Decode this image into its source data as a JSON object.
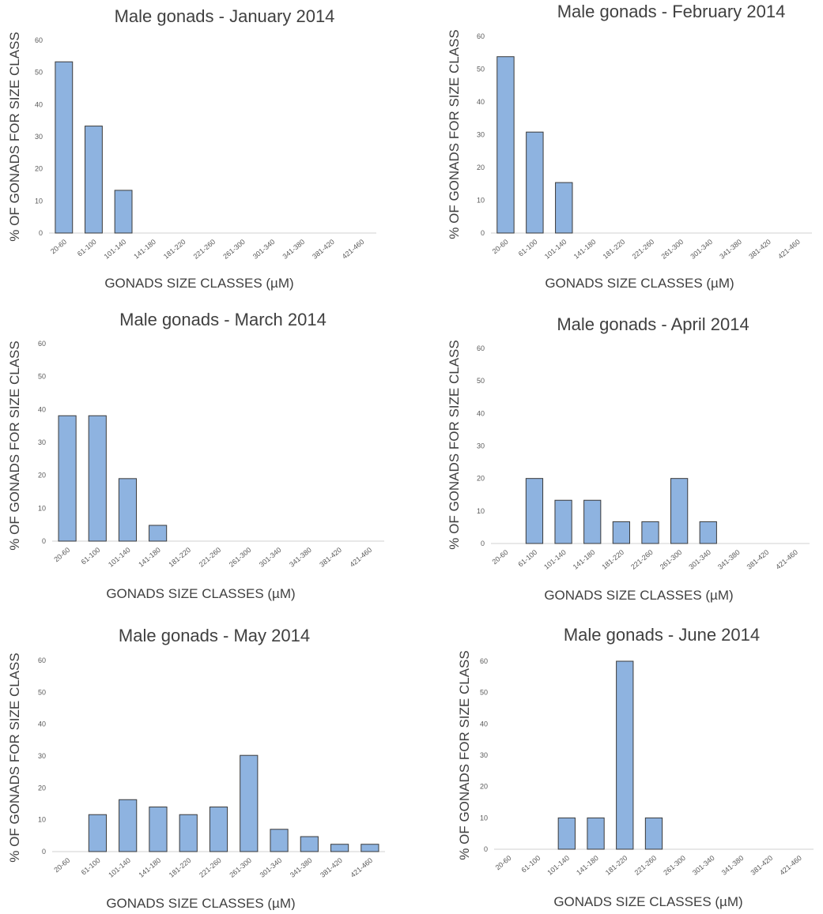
{
  "chart_data": [
    {
      "type": "bar",
      "title": "Male gonads - January 2014",
      "xlabel": "GONADS SIZE CLASSES (µM)",
      "ylabel": "% OF GONADS FOR SIZE CLASS",
      "ylim": [
        0,
        60
      ],
      "yticks": [
        0,
        10,
        20,
        30,
        40,
        50,
        60
      ],
      "categories": [
        "20-60",
        "61-100",
        "101-140",
        "141-180",
        "181-220",
        "221-260",
        "261-300",
        "301-340",
        "341-380",
        "381-420",
        "421-460"
      ],
      "values": [
        53.3,
        33.3,
        13.3,
        0,
        0,
        0,
        0,
        0,
        0,
        0,
        0
      ]
    },
    {
      "type": "bar",
      "title": "Male gonads - February 2014",
      "xlabel": "GONADS SIZE CLASSES (µM)",
      "ylabel": "% OF GONADS FOR SIZE CLASS",
      "ylim": [
        0,
        60
      ],
      "yticks": [
        0,
        10,
        20,
        30,
        40,
        50,
        60
      ],
      "categories": [
        "20-60",
        "61-100",
        "101-140",
        "141-180",
        "181-220",
        "221-260",
        "261-300",
        "301-340",
        "341-380",
        "381-420",
        "421-460"
      ],
      "values": [
        53.8,
        30.8,
        15.4,
        0,
        0,
        0,
        0,
        0,
        0,
        0,
        0
      ]
    },
    {
      "type": "bar",
      "title": "Male gonads - March 2014",
      "xlabel": "GONADS SIZE CLASSES (µM)",
      "ylabel": "% OF GONADS FOR SIZE CLASS",
      "ylim": [
        0,
        60
      ],
      "yticks": [
        0,
        10,
        20,
        30,
        40,
        50,
        60
      ],
      "categories": [
        "20-60",
        "61-100",
        "101-140",
        "141-180",
        "181-220",
        "221-260",
        "261-300",
        "301-340",
        "341-380",
        "381-420",
        "421-460"
      ],
      "values": [
        38.1,
        38.1,
        19.0,
        4.8,
        0,
        0,
        0,
        0,
        0,
        0,
        0
      ]
    },
    {
      "type": "bar",
      "title": "Male gonads - April 2014",
      "xlabel": "GONADS SIZE CLASSES (µM)",
      "ylabel": "% OF GONADS FOR SIZE CLASS",
      "ylim": [
        0,
        60
      ],
      "yticks": [
        0,
        10,
        20,
        30,
        40,
        50,
        60
      ],
      "categories": [
        "20-60",
        "61-100",
        "101-140",
        "141-180",
        "181-220",
        "221-260",
        "261-300",
        "301-340",
        "341-380",
        "381-420",
        "421-460"
      ],
      "values": [
        0,
        20.0,
        13.3,
        13.3,
        6.7,
        6.7,
        20.0,
        6.7,
        0,
        0,
        0
      ]
    },
    {
      "type": "bar",
      "title": "Male gonads - May 2014",
      "xlabel": "GONADS SIZE CLASSES (µM)",
      "ylabel": "% OF GONADS FOR SIZE CLASS",
      "ylim": [
        0,
        60
      ],
      "yticks": [
        0,
        10,
        20,
        30,
        40,
        50,
        60
      ],
      "categories": [
        "20-60",
        "61-100",
        "101-140",
        "141-180",
        "181-220",
        "221-260",
        "261-300",
        "301-340",
        "341-380",
        "381-420",
        "421-460"
      ],
      "values": [
        0,
        11.6,
        16.3,
        14.0,
        11.6,
        14.0,
        30.2,
        7.0,
        4.7,
        2.3,
        2.3
      ]
    },
    {
      "type": "bar",
      "title": "Male gonads - June 2014",
      "xlabel": "GONADS SIZE CLASSES (µM)",
      "ylabel": "% OF GONADS FOR SIZE CLASS",
      "ylim": [
        0,
        60
      ],
      "yticks": [
        0,
        10,
        20,
        30,
        40,
        50,
        60
      ],
      "categories": [
        "20-60",
        "61-100",
        "101-140",
        "141-180",
        "181-220",
        "221-260",
        "261-300",
        "301-340",
        "341-380",
        "381-420",
        "421-460"
      ],
      "values": [
        0,
        0,
        10,
        10,
        60,
        10,
        0,
        0,
        0,
        0,
        0
      ]
    }
  ],
  "colors": {
    "bar_fill": "#8eb3e0",
    "bar_stroke": "#3a3a3a",
    "axis": "#d0d0d0",
    "text": "#404040"
  }
}
